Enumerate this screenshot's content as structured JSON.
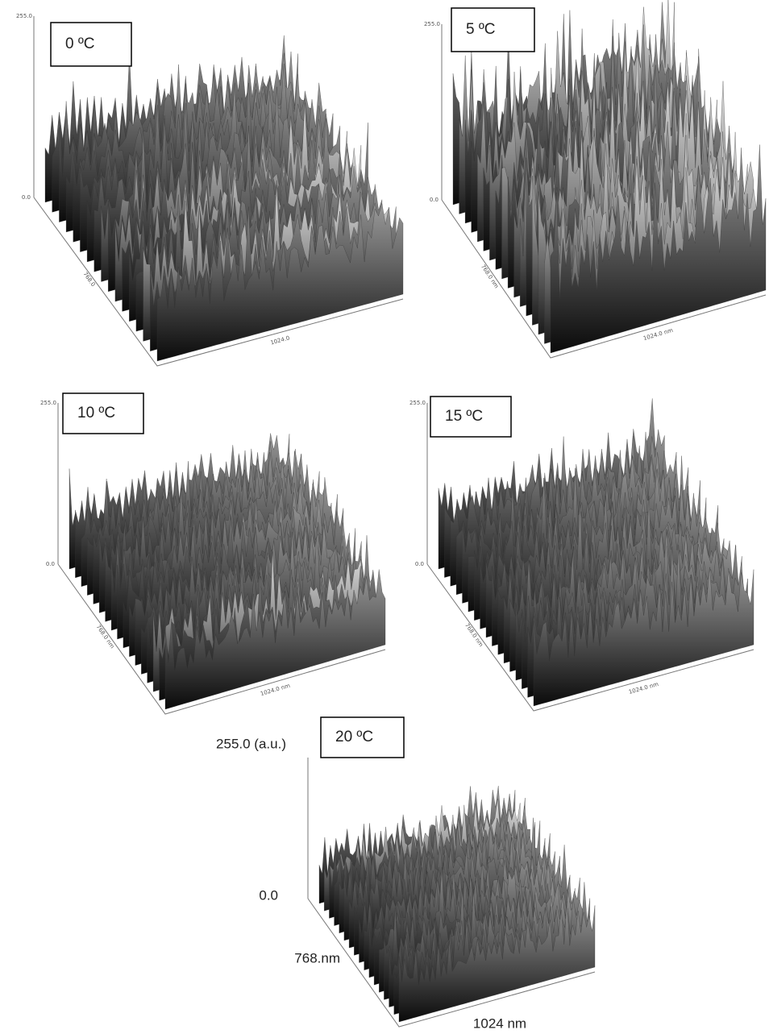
{
  "panels": [
    {
      "label": "0 ºC",
      "z_max": "255.0",
      "z_min": "0.0",
      "y_label": "768.0",
      "x_label": "1024.0"
    },
    {
      "label": "5 ºC",
      "z_max": "255.0",
      "z_min": "0.0",
      "y_label": "768.0 nm",
      "x_label": "1024.0 nm"
    },
    {
      "label": "10 ºC",
      "z_max": "255.0",
      "z_min": "0.0",
      "y_label": "768.0 nm",
      "x_label": "1024.0 nm"
    },
    {
      "label": "15 ºC",
      "z_max": "255.0",
      "z_min": "0.0",
      "y_label": "768.0 nm",
      "x_label": "1024.0 nm"
    },
    {
      "label": "20 ºC",
      "z_max": "255.0 (a.u.)",
      "z_min": "0.0",
      "y_label": "768.nm",
      "x_label": "1024 nm"
    }
  ]
}
